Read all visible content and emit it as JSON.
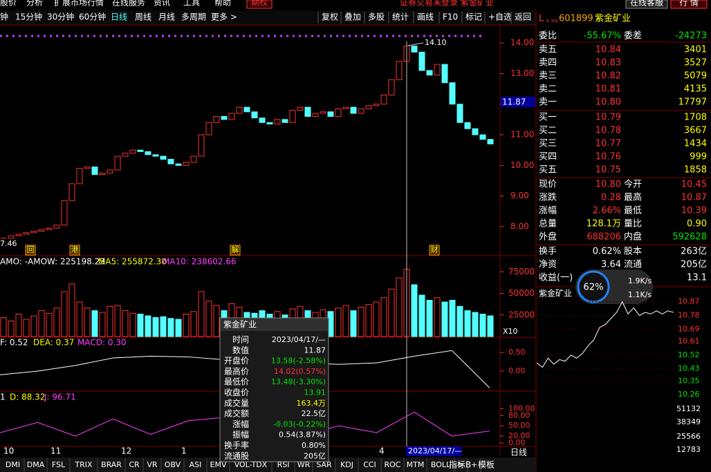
{
  "menu": {
    "items": [
      "股价",
      "分析",
      "扩展市场行情",
      "在线服务",
      "资讯",
      "工具",
      "帮助"
    ],
    "option": "期权",
    "status": "证券交易未登录 紫金矿业",
    "service": "在线客服",
    "quote": "行 情"
  },
  "toolbar": {
    "periods": [
      "钟",
      "15分钟",
      "30分钟",
      "60分钟",
      "日线",
      "周线",
      "月线",
      "多周期",
      "更多 >"
    ],
    "tools": [
      "复权",
      "叠加",
      "多股",
      "统计",
      "画线",
      "F10",
      "标记",
      "+自选",
      "返回"
    ]
  },
  "price_chart": {
    "type": "candlestick",
    "ylim": [
      7.05,
      14.59
    ],
    "yticks": [
      {
        "value": 14,
        "label": "14.00"
      },
      {
        "value": 13,
        "label": "13.00"
      },
      {
        "value": 12,
        "label": "12.00"
      },
      {
        "value": 11,
        "label": "11.00"
      },
      {
        "value": 10,
        "label": "10.00"
      },
      {
        "value": 9,
        "label": "9.00"
      },
      {
        "value": 8,
        "label": "8.00"
      }
    ],
    "up_color": "#ff3232",
    "down_color": "#54ffff",
    "closes": [
      7.62,
      7.7,
      7.75,
      7.8,
      7.85,
      7.9,
      7.95,
      8.05,
      8.85,
      9.4,
      9.9,
      9.95,
      9.7,
      9.75,
      9.85,
      10.3,
      10.4,
      10.5,
      10.45,
      10.35,
      10.3,
      10.2,
      10.05,
      10.0,
      10.1,
      10.3,
      11.0,
      11.4,
      11.6,
      11.5,
      11.7,
      11.9,
      11.75,
      11.55,
      11.4,
      11.35,
      11.5,
      11.4,
      11.8,
      11.9,
      11.6,
      11.7,
      11.75,
      11.6,
      11.85,
      11.9,
      11.7,
      11.85,
      11.95,
      12.0,
      12.3,
      12.8,
      13.4,
      13.9,
      13.7,
      13.1,
      12.95,
      13.3,
      12.7,
      12.0,
      11.4,
      11.2,
      11.0,
      10.85,
      10.7
    ],
    "high_label": "14.10",
    "low_label": "7.46",
    "cursor_value": "11.87",
    "events": [
      "回",
      "港",
      "解",
      "财"
    ]
  },
  "volume_chart": {
    "type": "bar",
    "header": [
      "AMO: -",
      "AMOW: 225198.23",
      "MA5: 255872.30",
      "MA10: 238602.66"
    ],
    "ylim": [
      0,
      92000
    ],
    "yticks": [
      75000,
      50000,
      25000
    ],
    "scale": "X10",
    "values": [
      22000,
      18000,
      26000,
      20000,
      24000,
      30000,
      27000,
      33000,
      52000,
      61000,
      40000,
      33000,
      30000,
      28000,
      35000,
      36000,
      30000,
      27000,
      26000,
      24000,
      22000,
      23000,
      21000,
      20000,
      26000,
      29000,
      52000,
      41000,
      36000,
      30000,
      38000,
      34000,
      28000,
      27000,
      30000,
      26000,
      29000,
      25000,
      32000,
      35000,
      30000,
      28000,
      31000,
      29000,
      33000,
      36000,
      30000,
      34000,
      37000,
      40000,
      45000,
      55000,
      68000,
      78000,
      60000,
      48000,
      42000,
      45000,
      40000,
      42000,
      35000,
      30000,
      28000,
      26000,
      24000
    ]
  },
  "macd_chart": {
    "type": "line",
    "header": [
      "F: 0.52",
      "DEA: 0.37",
      "MACD: 0.30"
    ],
    "ylim": [
      -0.52,
      0.87
    ],
    "yticks": [
      {
        "value": 0.5,
        "label": "0.50"
      },
      {
        "value": 0,
        "label": "0.00"
      }
    ],
    "color": "#ffffff",
    "values": [
      -0.1,
      0.0,
      0.15,
      0.35,
      0.4,
      0.38,
      0.3,
      0.25,
      0.22,
      0.18,
      0.22,
      0.4,
      0.55,
      -0.45
    ]
  },
  "kdj_chart": {
    "type": "line",
    "header": [
      "1",
      "D: 88.32",
      "J: 96.71"
    ],
    "ylim": [
      -8,
      145
    ],
    "yticks": [
      {
        "value": 100,
        "label": "100.00"
      },
      {
        "value": 80,
        "label": "80.00"
      },
      {
        "value": 50,
        "label": "50.00"
      },
      {
        "value": 20,
        "label": "20.00"
      },
      {
        "value": 0,
        "label": "0.00"
      }
    ],
    "color": "#ff40ff",
    "values": [
      30,
      60,
      20,
      70,
      25,
      65,
      75,
      40,
      20,
      50,
      30,
      90,
      20,
      35
    ]
  },
  "x_axis": {
    "labels": [
      "10",
      "11",
      "12",
      "1",
      "4"
    ],
    "cursor": "2023/04/17/—",
    "period": "日线"
  },
  "tabs": [
    "DMI",
    "DMA",
    "FSL",
    "TRIX",
    "BRAR",
    "CR",
    "VR",
    "OBV",
    "ASI",
    "EMV",
    "VOL-TDX",
    "RSI",
    "WR",
    "SAR",
    "KDJ",
    "CCI",
    "ROC",
    "MTM",
    "BOLL",
    ">",
    "+"
  ],
  "tabs_right": [
    "指标B",
    "模板"
  ],
  "popup": {
    "title": "紫金矿业",
    "rows": [
      [
        "时间",
        "2023/04/17/—"
      ],
      [
        "数值",
        "11.87"
      ],
      [
        "开盘价",
        "13.58(-2.58%)"
      ],
      [
        "最高价",
        "14.02(0.57%)"
      ],
      [
        "最低价",
        "13.48(-3.30%)"
      ],
      [
        "收盘价",
        "13.91"
      ],
      [
        "成交量",
        "163.4万"
      ],
      [
        "成交额",
        "22.5亿"
      ],
      [
        "涨幅",
        "-0.03(-0.22%)"
      ],
      [
        "振幅",
        "0.54(3.87%)"
      ],
      [
        "换手率",
        "0.80%"
      ],
      [
        "流通股",
        "205亿"
      ]
    ]
  },
  "quote": {
    "market": "L",
    "sub": "R 300",
    "code": "601899",
    "name": "紫金矿业",
    "order": [
      "委比",
      "-55.67%",
      "委差",
      "-24273"
    ],
    "asks": [
      [
        "卖五",
        "10.84",
        "3401"
      ],
      [
        "卖四",
        "10.83",
        "3527"
      ],
      [
        "卖三",
        "10.82",
        "5079"
      ],
      [
        "卖二",
        "10.81",
        "4135"
      ],
      [
        "卖一",
        "10.80",
        "17797"
      ]
    ],
    "bids": [
      [
        "买一",
        "10.79",
        "1708"
      ],
      [
        "买二",
        "10.78",
        "3667"
      ],
      [
        "买三",
        "10.77",
        "1434"
      ],
      [
        "买四",
        "10.76",
        "999"
      ],
      [
        "买五",
        "10.75",
        "1858"
      ]
    ],
    "stats": [
      [
        "现价",
        "10.80",
        "今开",
        "10.45"
      ],
      [
        "涨跌",
        "0.28",
        "最高",
        "10.87"
      ],
      [
        "涨幅",
        "2.66%",
        "最低",
        "10.39"
      ],
      [
        "总量",
        "128.1万",
        "量比",
        "0.90"
      ],
      [
        "外盘",
        "688206",
        "内盘",
        "592628"
      ]
    ],
    "stats2": [
      [
        "换手",
        "0.62%",
        "股本",
        "263亿"
      ],
      [
        "净资",
        "3.64",
        "流通",
        "205亿"
      ]
    ],
    "earnings": [
      "收益(一)",
      "13.1"
    ],
    "speed": {
      "percent": "62%",
      "up": "1.9K/s",
      "down": "1.1K/s"
    }
  },
  "intraday": {
    "type": "line",
    "title": "紫金矿业",
    "ylim": [
      10.22,
      10.9
    ],
    "color": "#ffffff",
    "yticks": [
      10.87,
      10.78,
      10.69,
      {
        "value": 10.61,
        "label": "10.61"
      },
      10.52,
      10.43,
      10.35,
      10.26
    ],
    "values": [
      10.47,
      10.44,
      10.5,
      10.46,
      10.49,
      10.48,
      10.52,
      10.5,
      10.53,
      10.58,
      10.62,
      10.7,
      10.72,
      10.76,
      10.8,
      10.87,
      10.79,
      10.83,
      10.78,
      10.8,
      10.79,
      10.81,
      10.79,
      10.81,
      10.8
    ],
    "vol_ticks": [
      51132,
      38349,
      25566,
      12783
    ]
  }
}
